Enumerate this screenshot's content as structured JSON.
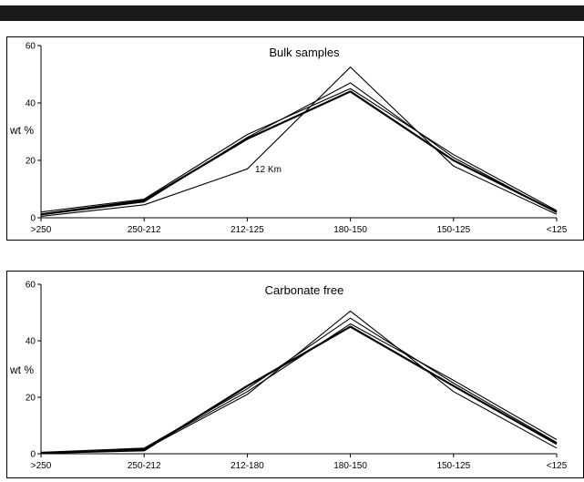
{
  "chart_data": [
    {
      "type": "line",
      "title": "Bulk samples",
      "ylabel": "wt %",
      "xlabel": "",
      "ylim": [
        0,
        60
      ],
      "yticks": [
        0,
        20,
        40,
        60
      ],
      "categories": [
        ">250",
        "250-212",
        "212-125",
        "180-150",
        "150-125",
        "<125"
      ],
      "annotation": "12 Km",
      "series": [
        {
          "values": [
            0.5,
            4.5,
            17,
            52.5,
            18,
            1.2
          ]
        },
        {
          "values": [
            1.0,
            5.5,
            28,
            47,
            21,
            1.8
          ]
        },
        {
          "values": [
            2.0,
            6.5,
            29,
            45,
            22,
            2.5
          ]
        },
        {
          "values": [
            1.2,
            6.0,
            27.5,
            44,
            20,
            2.0
          ]
        }
      ]
    },
    {
      "type": "line",
      "title": "Carbonate free",
      "ylabel": "wt %",
      "xlabel": "",
      "ylim": [
        0,
        60
      ],
      "yticks": [
        0,
        20,
        40,
        60
      ],
      "categories": [
        ">250",
        "250-212",
        "212-180",
        "180-150",
        "150-125",
        "<125"
      ],
      "series": [
        {
          "values": [
            0.3,
            1.5,
            21,
            50.5,
            22,
            2.0
          ]
        },
        {
          "values": [
            0.5,
            2.0,
            23,
            48,
            25,
            4.0
          ]
        },
        {
          "values": [
            0.4,
            1.8,
            22,
            46,
            26,
            5.0
          ]
        },
        {
          "values": [
            0.3,
            1.2,
            24,
            45,
            24,
            3.5
          ]
        }
      ]
    }
  ]
}
